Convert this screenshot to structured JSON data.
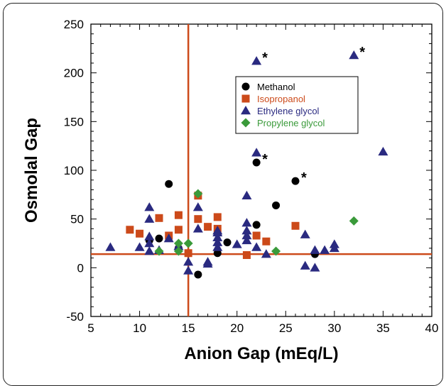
{
  "chart_data": {
    "type": "scatter",
    "title": "",
    "xlabel": "Anion Gap (mEq/L)",
    "ylabel": "Osmolal Gap",
    "xlim": [
      5,
      40
    ],
    "ylim": [
      -50,
      250
    ],
    "xticks": [
      "5",
      "10",
      "15",
      "20",
      "25",
      "30",
      "35",
      "40"
    ],
    "yticks": [
      "-50",
      "0",
      "50",
      "100",
      "150",
      "200",
      "250"
    ],
    "grid": false,
    "legend_position": "upper-center",
    "reference_lines": {
      "vertical_x": 15,
      "horizontal_y": 14,
      "color": "#cc4a1a"
    },
    "series": [
      {
        "name": "Methanol",
        "marker": "circle",
        "color": "#000000",
        "points": [
          [
            11,
            28
          ],
          [
            12,
            30
          ],
          [
            13,
            86
          ],
          [
            14,
            20
          ],
          [
            16,
            -7
          ],
          [
            18,
            15
          ],
          [
            19,
            26
          ],
          [
            22,
            44
          ],
          [
            22,
            108
          ],
          [
            24,
            64
          ],
          [
            26,
            89
          ],
          [
            28,
            14
          ]
        ]
      },
      {
        "name": "Isopropanol",
        "marker": "square",
        "color": "#cc4a1a",
        "points": [
          [
            9,
            39
          ],
          [
            10,
            35
          ],
          [
            12,
            51
          ],
          [
            13,
            33
          ],
          [
            14,
            39
          ],
          [
            14,
            54
          ],
          [
            15,
            15
          ],
          [
            16,
            50
          ],
          [
            16,
            74
          ],
          [
            17,
            42
          ],
          [
            18,
            40
          ],
          [
            18,
            52
          ],
          [
            21,
            13
          ],
          [
            22,
            33
          ],
          [
            23,
            27
          ],
          [
            26,
            43
          ]
        ]
      },
      {
        "name": "Ethylene glycol",
        "marker": "triangle",
        "color": "#2a2a80",
        "points": [
          [
            7,
            21
          ],
          [
            10,
            21
          ],
          [
            11,
            17
          ],
          [
            11,
            25
          ],
          [
            11,
            32
          ],
          [
            11,
            50
          ],
          [
            11,
            62
          ],
          [
            12,
            18
          ],
          [
            13,
            30
          ],
          [
            14,
            22
          ],
          [
            15,
            -3
          ],
          [
            15,
            6
          ],
          [
            16,
            40
          ],
          [
            16,
            62
          ],
          [
            17,
            4
          ],
          [
            17,
            6
          ],
          [
            18,
            21
          ],
          [
            18,
            26
          ],
          [
            18,
            31
          ],
          [
            18,
            36
          ],
          [
            18,
            38
          ],
          [
            20,
            24
          ],
          [
            21,
            28
          ],
          [
            21,
            33
          ],
          [
            21,
            38
          ],
          [
            21,
            46
          ],
          [
            21,
            74
          ],
          [
            22,
            21
          ],
          [
            22,
            118
          ],
          [
            22,
            212
          ],
          [
            23,
            14
          ],
          [
            27,
            34
          ],
          [
            27,
            2
          ],
          [
            28,
            0
          ],
          [
            28,
            18
          ],
          [
            29,
            18
          ],
          [
            30,
            20
          ],
          [
            30,
            24
          ],
          [
            32,
            218
          ],
          [
            35,
            119
          ]
        ]
      },
      {
        "name": "Propylene glycol",
        "marker": "diamond",
        "color": "#3a9a3a",
        "points": [
          [
            12,
            17
          ],
          [
            14,
            17
          ],
          [
            14,
            25
          ],
          [
            15,
            25
          ],
          [
            16,
            76
          ],
          [
            24,
            17
          ],
          [
            32,
            48
          ]
        ]
      }
    ],
    "annotations": [
      {
        "text": "*",
        "x": 22,
        "y": 212
      },
      {
        "text": "*",
        "x": 22,
        "y": 108
      },
      {
        "text": "*",
        "x": 26,
        "y": 89
      },
      {
        "text": "*",
        "x": 32,
        "y": 218
      }
    ]
  }
}
